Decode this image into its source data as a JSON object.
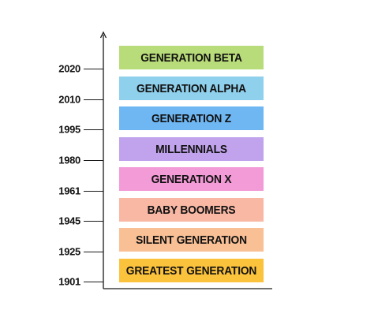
{
  "generations": [
    {
      "label": "GENERATION BETA",
      "color": "#b9dc7a"
    },
    {
      "label": "GENERATION ALPHA",
      "color": "#8fd0ec"
    },
    {
      "label": "GENERATION Z",
      "color": "#6fb7f3"
    },
    {
      "label": "MILLENNIALS",
      "color": "#c0a3ec"
    },
    {
      "label": "GENERATION X",
      "color": "#f29bd6"
    },
    {
      "label": "BABY BOOMERS",
      "color": "#f8b8a4"
    },
    {
      "label": "SILENT GENERATION",
      "color": "#f9c096"
    },
    {
      "label": "GREATEST GENERATION",
      "color": "#fbc23c"
    }
  ],
  "years": [
    "2020",
    "2010",
    "1995",
    "1980",
    "1961",
    "1945",
    "1925",
    "1901"
  ],
  "axis_color": "#1a1a1a"
}
